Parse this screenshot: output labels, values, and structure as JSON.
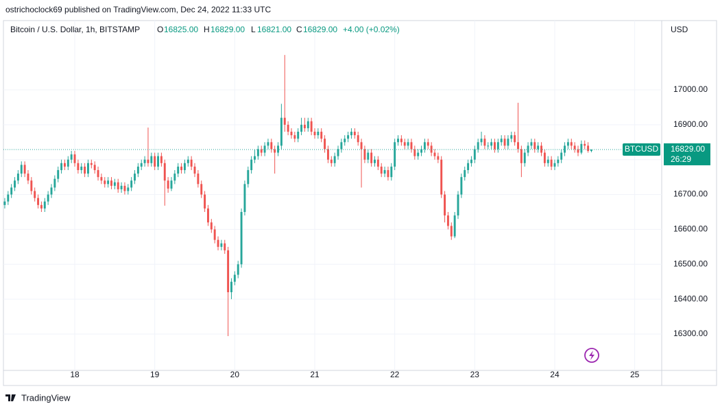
{
  "header": {
    "publisher": "ostrichoclock69 published on TradingView.com, Dec 24, 2022 11:33 UTC"
  },
  "legend": {
    "symbol": "Bitcoin / U.S. Dollar, 1h, BITSTAMP",
    "o_label": "O",
    "open": "16825.00",
    "h_label": "H",
    "high": "16829.00",
    "l_label": "L",
    "low": "16821.00",
    "c_label": "C",
    "close": "16829.00",
    "change": "+4.00 (+0.02%)"
  },
  "currency": "USD",
  "price_label": {
    "ticker": "BTCUSD",
    "price": "16829.00",
    "countdown": "26:29"
  },
  "footer": {
    "brand": "TradingView"
  },
  "chart_data": {
    "type": "candlestick",
    "up_color": "#26a69a",
    "down_color": "#ef5350",
    "grid": true,
    "xlim": [
      2.6,
      200.1
    ],
    "xticks": [
      {
        "value": 24,
        "label": "18"
      },
      {
        "value": 48,
        "label": "19"
      },
      {
        "value": 72,
        "label": "20"
      },
      {
        "value": 96,
        "label": "21"
      },
      {
        "value": 120,
        "label": "22"
      },
      {
        "value": 144,
        "label": "23"
      },
      {
        "value": 168,
        "label": "24"
      },
      {
        "value": 192,
        "label": "25"
      }
    ],
    "ylim": [
      16195.8,
      17198.6
    ],
    "yticks": [
      {
        "value": 16300,
        "label": "16300.00"
      },
      {
        "value": 16400,
        "label": "16400.00"
      },
      {
        "value": 16500,
        "label": "16500.00"
      },
      {
        "value": 16600,
        "label": "16600.00"
      },
      {
        "value": 16700,
        "label": "16700.00"
      },
      {
        "value": 16800,
        "label": "16800.00"
      },
      {
        "value": 16900,
        "label": "16900.00"
      },
      {
        "value": 17000,
        "label": "17000.00"
      }
    ],
    "x": [
      3,
      4,
      5,
      6,
      7,
      8,
      9,
      10,
      11,
      12,
      13,
      14,
      15,
      16,
      17,
      18,
      19,
      20,
      21,
      22,
      23,
      24,
      25,
      26,
      27,
      28,
      29,
      30,
      31,
      32,
      33,
      34,
      35,
      36,
      37,
      38,
      39,
      40,
      41,
      42,
      43,
      44,
      45,
      46,
      47,
      48,
      49,
      50,
      51,
      52,
      53,
      54,
      55,
      56,
      57,
      58,
      59,
      60,
      61,
      62,
      63,
      64,
      65,
      66,
      67,
      68,
      69,
      70,
      71,
      72,
      73,
      74,
      75,
      76,
      77,
      78,
      79,
      80,
      81,
      82,
      83,
      84,
      85,
      86,
      87,
      88,
      89,
      90,
      91,
      92,
      93,
      94,
      95,
      96,
      97,
      98,
      99,
      100,
      101,
      102,
      103,
      104,
      105,
      106,
      107,
      108,
      109,
      110,
      111,
      112,
      113,
      114,
      115,
      116,
      117,
      118,
      119,
      120,
      121,
      122,
      123,
      124,
      125,
      126,
      127,
      128,
      129,
      130,
      131,
      132,
      133,
      134,
      135,
      136,
      137,
      138,
      139,
      140,
      141,
      142,
      143,
      144,
      145,
      146,
      147,
      148,
      149,
      150,
      151,
      152,
      153,
      154,
      155,
      156,
      157,
      158,
      159,
      160,
      161,
      162,
      163,
      164,
      165,
      166,
      167,
      168,
      169,
      170,
      171,
      172,
      173,
      174,
      175,
      176,
      177,
      178,
      179
    ],
    "open": [
      16670,
      16680,
      16700,
      16720,
      16740,
      16760,
      16785,
      16760,
      16740,
      16710,
      16690,
      16670,
      16660,
      16680,
      16700,
      16720,
      16745,
      16770,
      16790,
      16780,
      16800,
      16815,
      16790,
      16770,
      16780,
      16760,
      16790,
      16785,
      16770,
      16750,
      16740,
      16730,
      16740,
      16725,
      16735,
      16715,
      16725,
      16710,
      16720,
      16740,
      16760,
      16780,
      16790,
      16800,
      16790,
      16810,
      16780,
      16810,
      16790,
      16740,
      16717,
      16740,
      16760,
      16780,
      16770,
      16790,
      16800,
      16780,
      16760,
      16730,
      16700,
      16660,
      16620,
      16600,
      16570,
      16550,
      16560,
      16540,
      16420,
      16450,
      16470,
      16500,
      16650,
      16730,
      16770,
      16800,
      16810,
      16830,
      16820,
      16840,
      16850,
      16830,
      16820,
      16840,
      16920,
      16900,
      16880,
      16870,
      16860,
      16880,
      16900,
      16890,
      16910,
      16880,
      16870,
      16880,
      16860,
      16830,
      16800,
      16790,
      16810,
      16830,
      16850,
      16860,
      16870,
      16880,
      16870,
      16850,
      16830,
      16800,
      16820,
      16790,
      16800,
      16780,
      16760,
      16770,
      16750,
      16780,
      16850,
      16860,
      16850,
      16840,
      16850,
      16830,
      16810,
      16820,
      16830,
      16850,
      16840,
      16820,
      16810,
      16800,
      16700,
      16640,
      16610,
      16580,
      16640,
      16700,
      16750,
      16770,
      16790,
      16800,
      16830,
      16850,
      16860,
      16840,
      16840,
      16850,
      16830,
      16850,
      16860,
      16840,
      16860,
      16870,
      16850,
      16830,
      16790,
      16820,
      16840,
      16850,
      16830,
      16840,
      16820,
      16790,
      16800,
      16780,
      16790,
      16800,
      16820,
      16840,
      16850,
      16840,
      16830,
      16820,
      16845,
      16840,
      16825
    ],
    "high": [
      16690,
      16710,
      16730,
      16750,
      16770,
      16795,
      16795,
      16770,
      16750,
      16720,
      16700,
      16680,
      16690,
      16710,
      16730,
      16755,
      16780,
      16800,
      16800,
      16810,
      16825,
      16825,
      16800,
      16790,
      16790,
      16800,
      16800,
      16795,
      16780,
      16760,
      16750,
      16750,
      16750,
      16745,
      16745,
      16735,
      16735,
      16730,
      16750,
      16770,
      16790,
      16800,
      16810,
      16892,
      16820,
      16820,
      16820,
      16820,
      16800,
      16750,
      16750,
      16770,
      16790,
      16790,
      16800,
      16810,
      16810,
      16790,
      16770,
      16740,
      16710,
      16670,
      16630,
      16610,
      16580,
      16570,
      16570,
      16550,
      16460,
      16480,
      16510,
      16660,
      16740,
      16780,
      16810,
      16830,
      16840,
      16840,
      16850,
      16860,
      16860,
      16840,
      16850,
      16960,
      17100,
      16910,
      16890,
      16880,
      16890,
      16920,
      16920,
      16920,
      16920,
      16890,
      16890,
      16890,
      16870,
      16840,
      16810,
      16820,
      16840,
      16860,
      16870,
      16880,
      16890,
      16890,
      16880,
      16860,
      16840,
      16830,
      16830,
      16810,
      16810,
      16790,
      16780,
      16780,
      16790,
      16860,
      16870,
      16870,
      16860,
      16860,
      16860,
      16840,
      16830,
      16840,
      16860,
      16860,
      16850,
      16830,
      16820,
      16810,
      16710,
      16650,
      16620,
      16650,
      16710,
      16760,
      16780,
      16800,
      16810,
      16840,
      16860,
      16880,
      16870,
      16850,
      16860,
      16860,
      16860,
      16870,
      16870,
      16870,
      16880,
      16880,
      16963,
      16840,
      16830,
      16850,
      16860,
      16860,
      16850,
      16850,
      16830,
      16810,
      16810,
      16800,
      16810,
      16830,
      16850,
      16860,
      16860,
      16850,
      16840,
      16855,
      16855,
      16850,
      16829
    ],
    "low": [
      16660,
      16670,
      16690,
      16710,
      16730,
      16750,
      16750,
      16730,
      16700,
      16680,
      16660,
      16650,
      16650,
      16670,
      16690,
      16710,
      16735,
      16760,
      16770,
      16770,
      16790,
      16780,
      16760,
      16760,
      16750,
      16750,
      16775,
      16760,
      16740,
      16730,
      16720,
      16720,
      16715,
      16715,
      16705,
      16705,
      16700,
      16700,
      16710,
      16730,
      16750,
      16770,
      16780,
      16780,
      16780,
      16770,
      16770,
      16780,
      16668,
      16705,
      16710,
      16730,
      16750,
      16760,
      16760,
      16780,
      16770,
      16750,
      16720,
      16690,
      16650,
      16610,
      16590,
      16560,
      16540,
      16540,
      16530,
      16294,
      16400,
      16440,
      16460,
      16490,
      16640,
      16720,
      16760,
      16790,
      16800,
      16810,
      16810,
      16830,
      16820,
      16760,
      16810,
      16830,
      16880,
      16870,
      16860,
      16850,
      16850,
      16870,
      16880,
      16880,
      16870,
      16860,
      16860,
      16850,
      16820,
      16790,
      16780,
      16780,
      16800,
      16820,
      16840,
      16850,
      16860,
      16860,
      16840,
      16720,
      16790,
      16790,
      16780,
      16780,
      16770,
      16750,
      16750,
      16740,
      16740,
      16770,
      16840,
      16840,
      16830,
      16830,
      16820,
      16800,
      16800,
      16810,
      16820,
      16830,
      16810,
      16800,
      16790,
      16690,
      16620,
      16600,
      16570,
      16575,
      16630,
      16690,
      16740,
      16760,
      16780,
      16790,
      16820,
      16840,
      16830,
      16830,
      16830,
      16820,
      16820,
      16840,
      16830,
      16830,
      16850,
      16840,
      16820,
      16750,
      16780,
      16810,
      16830,
      16820,
      16820,
      16810,
      16780,
      16780,
      16770,
      16770,
      16780,
      16790,
      16810,
      16830,
      16830,
      16820,
      16810,
      16815,
      16830,
      16820,
      16821
    ],
    "close": [
      16680,
      16700,
      16720,
      16740,
      16760,
      16785,
      16760,
      16740,
      16710,
      16690,
      16670,
      16660,
      16680,
      16700,
      16720,
      16745,
      16770,
      16790,
      16780,
      16800,
      16815,
      16790,
      16770,
      16780,
      16760,
      16790,
      16785,
      16770,
      16750,
      16740,
      16730,
      16740,
      16725,
      16735,
      16715,
      16725,
      16710,
      16720,
      16740,
      16760,
      16780,
      16790,
      16800,
      16790,
      16810,
      16780,
      16810,
      16790,
      16740,
      16717,
      16740,
      16760,
      16780,
      16770,
      16790,
      16800,
      16780,
      16760,
      16730,
      16700,
      16660,
      16620,
      16600,
      16570,
      16550,
      16560,
      16540,
      16420,
      16450,
      16470,
      16500,
      16650,
      16730,
      16770,
      16800,
      16810,
      16830,
      16820,
      16840,
      16850,
      16830,
      16820,
      16840,
      16920,
      16900,
      16880,
      16870,
      16860,
      16880,
      16900,
      16890,
      16910,
      16880,
      16870,
      16880,
      16860,
      16830,
      16800,
      16790,
      16810,
      16830,
      16850,
      16860,
      16870,
      16880,
      16870,
      16850,
      16830,
      16800,
      16820,
      16790,
      16800,
      16780,
      16760,
      16770,
      16750,
      16780,
      16850,
      16860,
      16850,
      16840,
      16850,
      16830,
      16810,
      16820,
      16830,
      16850,
      16840,
      16820,
      16810,
      16800,
      16700,
      16640,
      16610,
      16580,
      16640,
      16700,
      16750,
      16770,
      16790,
      16800,
      16830,
      16850,
      16860,
      16840,
      16840,
      16850,
      16830,
      16850,
      16860,
      16840,
      16860,
      16870,
      16850,
      16830,
      16790,
      16820,
      16840,
      16850,
      16830,
      16840,
      16820,
      16790,
      16800,
      16780,
      16790,
      16800,
      16820,
      16840,
      16850,
      16840,
      16830,
      16820,
      16845,
      16840,
      16825,
      16829
    ]
  }
}
